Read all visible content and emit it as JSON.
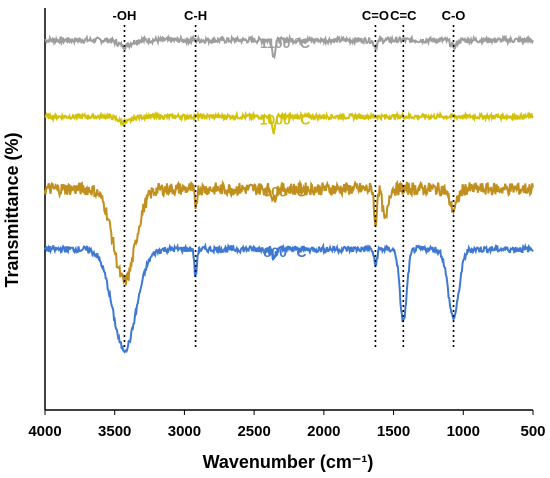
{
  "chart_data": {
    "type": "line",
    "xlabel": "Wavenumber (cm⁻¹)",
    "ylabel": "Transmittance (%)",
    "xlim": [
      4000,
      500
    ],
    "x_reversed": true,
    "x_ticks": [
      4000,
      3500,
      3000,
      2500,
      2000,
      1500,
      1000,
      500
    ],
    "x_tick_labels": [
      "4000",
      "3500",
      "3000",
      "2500",
      "2000",
      "1500",
      "1000",
      "500"
    ],
    "y_tick_labels_shown": false,
    "grid": false,
    "peak_markers": [
      {
        "label": "-OH",
        "x": 3430
      },
      {
        "label": "C-H",
        "x": 2920
      },
      {
        "label": "C=O",
        "x": 1630
      },
      {
        "label": "C=C",
        "x": 1430
      },
      {
        "label": "C-O",
        "x": 1070
      }
    ],
    "series": [
      {
        "name": "1100 °C",
        "color": "#9e9e9e",
        "baseline": 92,
        "noise": 0.7,
        "features": [
          {
            "x": 3430,
            "depth": 1.5,
            "width": 60
          },
          {
            "x": 2360,
            "depth": 4,
            "width": 15
          },
          {
            "x": 1630,
            "depth": 1.5,
            "width": 20
          },
          {
            "x": 1070,
            "depth": 1.5,
            "width": 30
          }
        ]
      },
      {
        "name": "1000 °C",
        "color": "#d4c10a",
        "baseline": 73,
        "noise": 0.6,
        "features": [
          {
            "x": 3430,
            "depth": 1.5,
            "width": 60
          },
          {
            "x": 2360,
            "depth": 4,
            "width": 15
          }
        ]
      },
      {
        "name": "900 °C",
        "color": "#c18f1d",
        "accent_color": "#ff7f27",
        "baseline": 55,
        "noise": 1.6,
        "features": [
          {
            "x": 3430,
            "depth": 23,
            "width": 110
          },
          {
            "x": 2920,
            "depth": 4,
            "width": 12
          },
          {
            "x": 2360,
            "depth": 3,
            "width": 15
          },
          {
            "x": 1630,
            "depth": 10,
            "width": 12
          },
          {
            "x": 1560,
            "depth": 8,
            "width": 25
          },
          {
            "x": 1070,
            "depth": 5,
            "width": 40
          }
        ]
      },
      {
        "name": "800 °C",
        "color": "#3f78d1",
        "accent_color": "#4aa3df",
        "baseline": 40,
        "noise": 0.8,
        "features": [
          {
            "x": 3430,
            "depth": 25,
            "width": 120
          },
          {
            "x": 2920,
            "depth": 7,
            "width": 12
          },
          {
            "x": 2360,
            "depth": 2.5,
            "width": 15
          },
          {
            "x": 1630,
            "depth": 4,
            "width": 15
          },
          {
            "x": 1430,
            "depth": 18,
            "width": 35
          },
          {
            "x": 1070,
            "depth": 17,
            "width": 55
          }
        ]
      }
    ]
  }
}
